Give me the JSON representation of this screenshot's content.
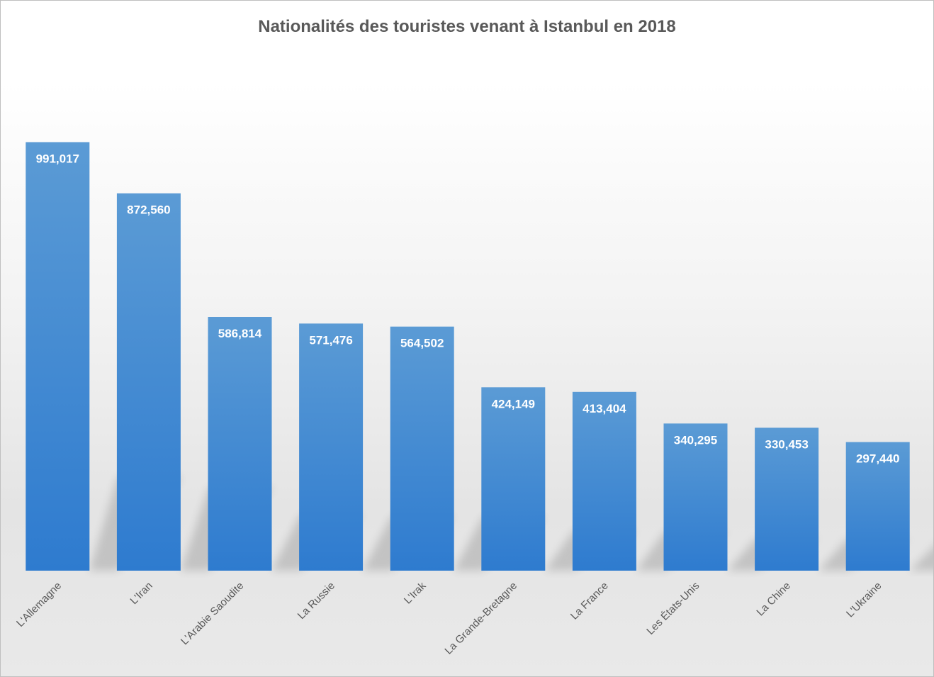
{
  "chart_data": {
    "type": "bar",
    "title": "Nationalités des touristes venant à Istanbul en 2018",
    "categories": [
      "L'Allemagne",
      "L'Iran",
      "L'Arabie Saoudite",
      "La Russie",
      "L'Irak",
      "La Grande-Bretagne",
      "La France",
      "Les États-Unis",
      "La Chine",
      "L'Ukraine"
    ],
    "values": [
      991017,
      872560,
      586814,
      571476,
      564502,
      424149,
      413404,
      340295,
      330453,
      297440
    ],
    "value_labels": [
      "991,017",
      "872,560",
      "586,814",
      "571,476",
      "564,502",
      "424,149",
      "413,404",
      "340,295",
      "330,453",
      "297,440"
    ],
    "ylim": [
      0,
      1000000
    ],
    "xlabel": "",
    "ylabel": "",
    "grid": false,
    "legend": "none",
    "colors": {
      "bar_top": "#5b9bd5",
      "bar_bottom": "#2e7bcf",
      "title": "#595959",
      "labels": "#595959",
      "value_text": "#ffffff"
    }
  }
}
